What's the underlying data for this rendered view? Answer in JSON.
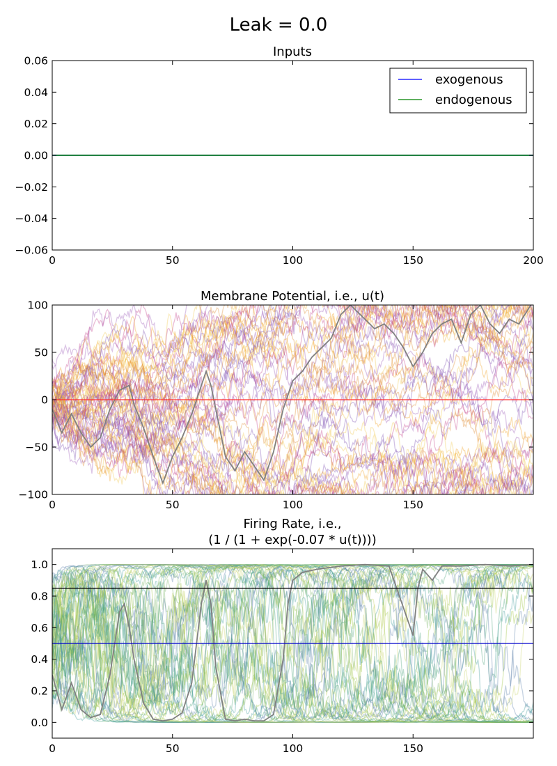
{
  "figure": {
    "suptitle": "Leak = 0.0"
  },
  "chart_data": [
    {
      "type": "line",
      "title": "Inputs",
      "xlim": [
        0,
        200
      ],
      "ylim": [
        -0.06,
        0.06
      ],
      "xticks": [
        0,
        50,
        100,
        150,
        200
      ],
      "yticks": [
        -0.06,
        -0.04,
        -0.02,
        0.0,
        0.02,
        0.04,
        0.06
      ],
      "xtick_labels": [
        "0",
        "50",
        "100",
        "150",
        "200"
      ],
      "ytick_labels": [
        "−0.06",
        "−0.04",
        "−0.02",
        "0.00",
        "0.02",
        "0.04",
        "0.06"
      ],
      "legend": {
        "position": "upper right",
        "entries": [
          "exogenous",
          "endogenous"
        ]
      },
      "series": [
        {
          "name": "exogenous",
          "color": "#0000ff",
          "x": [
            0,
            200
          ],
          "y": [
            0,
            0
          ]
        },
        {
          "name": "endogenous",
          "color": "#008000",
          "x": [
            0,
            200
          ],
          "y": [
            0,
            0
          ]
        }
      ]
    },
    {
      "type": "line",
      "title": "Membrane Potential, i.e., u(t)",
      "xlim": [
        0,
        200
      ],
      "ylim": [
        -100,
        100
      ],
      "xticks": [
        0,
        50,
        100,
        150
      ],
      "yticks": [
        -100,
        -50,
        0,
        50,
        100
      ],
      "xtick_labels": [
        "0",
        "50",
        "100",
        "150"
      ],
      "ytick_labels": [
        "−100",
        "−50",
        "0",
        "50",
        "100"
      ],
      "trace_count": 60,
      "trace_palette": [
        "#9b59b6",
        "#e08a2e",
        "#c2408a",
        "#f2c94c",
        "#7b4db3",
        "#f0a020"
      ],
      "highlight_trace": {
        "color": "#808080",
        "x": [
          0,
          4,
          8,
          12,
          16,
          20,
          24,
          28,
          32,
          34,
          38,
          42,
          46,
          50,
          54,
          58,
          62,
          64,
          66,
          68,
          72,
          76,
          80,
          84,
          88,
          92,
          96,
          100,
          104,
          108,
          112,
          116,
          120,
          124,
          126,
          130,
          134,
          138,
          142,
          146,
          150,
          154,
          158,
          162,
          166,
          170,
          174,
          178,
          182,
          186,
          190,
          194,
          199
        ],
        "y": [
          -10,
          -35,
          -15,
          -35,
          -50,
          -40,
          -10,
          10,
          15,
          -5,
          -30,
          -60,
          -88,
          -60,
          -40,
          -15,
          15,
          30,
          15,
          -10,
          -60,
          -75,
          -55,
          -70,
          -85,
          -55,
          -10,
          20,
          30,
          45,
          55,
          65,
          90,
          100,
          95,
          85,
          75,
          80,
          70,
          55,
          35,
          50,
          70,
          80,
          85,
          60,
          90,
          100,
          80,
          70,
          85,
          80,
          100
        ]
      },
      "hlines": [
        {
          "y": 0,
          "color": "#ff3030"
        }
      ]
    },
    {
      "type": "line",
      "title": "Firing Rate, i.e.,",
      "subtitle": "(1 / (1 + exp(-0.07 * u(t))))",
      "xlim": [
        0,
        200
      ],
      "ylim": [
        -0.1,
        1.1
      ],
      "xticks": [
        0,
        50,
        100,
        150
      ],
      "yticks": [
        0.0,
        0.2,
        0.4,
        0.6,
        0.8,
        1.0
      ],
      "xtick_labels": [
        "0",
        "50",
        "100",
        "150"
      ],
      "ytick_labels": [
        "0.0",
        "0.2",
        "0.4",
        "0.6",
        "0.8",
        "1.0"
      ],
      "trace_count": 60,
      "trace_palette": [
        "#7fb86a",
        "#3f9a9a",
        "#9ac43b",
        "#5a7da8",
        "#c8d46a",
        "#4aa37a"
      ],
      "highlight_trace": {
        "color": "#808080",
        "x": [
          0,
          4,
          8,
          12,
          16,
          20,
          24,
          28,
          30,
          32,
          34,
          38,
          42,
          46,
          50,
          54,
          58,
          62,
          64,
          66,
          68,
          72,
          76,
          80,
          84,
          88,
          92,
          96,
          98,
          100,
          104,
          110,
          120,
          130,
          140,
          150,
          152,
          154,
          158,
          162,
          170,
          180,
          190,
          199
        ],
        "y": [
          0.3,
          0.08,
          0.25,
          0.08,
          0.03,
          0.05,
          0.3,
          0.7,
          0.75,
          0.6,
          0.4,
          0.12,
          0.02,
          0.01,
          0.02,
          0.06,
          0.25,
          0.75,
          0.9,
          0.75,
          0.35,
          0.02,
          0.01,
          0.02,
          0.01,
          0.01,
          0.05,
          0.4,
          0.75,
          0.9,
          0.95,
          0.97,
          0.99,
          1.0,
          0.99,
          0.55,
          0.85,
          0.97,
          0.9,
          0.99,
          0.99,
          1.0,
          0.99,
          1.0
        ]
      },
      "hlines": [
        {
          "y": 0.5,
          "color": "#0000cc"
        },
        {
          "y": 0.85,
          "color": "#000000"
        }
      ]
    }
  ]
}
